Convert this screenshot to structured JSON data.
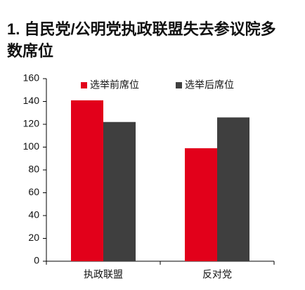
{
  "chart_data": {
    "type": "bar",
    "title": "1. 自民党/公明党执政联盟失去参议院多数席位",
    "categories": [
      "执政联盟",
      "反对党"
    ],
    "series": [
      {
        "name": "选举前席位",
        "color": "#e2001a",
        "values": [
          141,
          99
        ]
      },
      {
        "name": "选举后席位",
        "color": "#3f3f3f",
        "values": [
          122,
          126
        ]
      }
    ],
    "ylim": [
      0,
      160
    ],
    "yticks": [
      0,
      20,
      40,
      60,
      80,
      100,
      120,
      140,
      160
    ],
    "legend": "top"
  }
}
